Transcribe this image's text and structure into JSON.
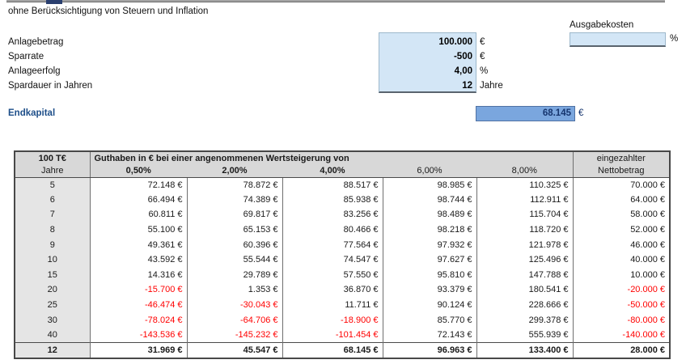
{
  "header": {
    "subtitle": "ohne Berücksichtigung von Steuern und Inflation"
  },
  "inputs": {
    "rows": [
      {
        "label": "Anlagebetrag",
        "value": "100.000",
        "unit": "€"
      },
      {
        "label": "Sparrate",
        "value": "-500",
        "unit": "€"
      },
      {
        "label": "Anlageerfolg",
        "value": "4,00",
        "unit": "%"
      },
      {
        "label": "Spardauer in Jahren",
        "value": "12",
        "unit": "Jahre"
      }
    ],
    "ausgabekosten": {
      "label": "Ausgabekosten",
      "value": "",
      "unit": "%"
    }
  },
  "result": {
    "label": "Endkapital",
    "value": "68.145",
    "unit": "€"
  },
  "colors": {
    "input_field_bg": "#d3e6f6",
    "result_field_bg": "#7aa6de",
    "negative_value": "#ff0000",
    "header_bg": "#d8d8d8",
    "result_text": "#16356e"
  },
  "table": {
    "corner_top": "100 T€",
    "corner_bottom": "Jahre",
    "group_header": "Guthaben in € bei einer angenommenen Wertsteigerung von",
    "last_col_top": "eingezahlter",
    "last_col_bottom": "Nettobetrag",
    "columns": [
      {
        "label": "0,50%",
        "bold": true
      },
      {
        "label": "2,00%",
        "bold": true
      },
      {
        "label": "4,00%",
        "bold": true
      },
      {
        "label": "6,00%",
        "bold": false
      },
      {
        "label": "8,00%",
        "bold": false
      }
    ],
    "rows": [
      {
        "jahre": "5",
        "values": [
          "72.148 €",
          "78.872 €",
          "88.517 €",
          "98.985 €",
          "110.325 €",
          "70.000 €"
        ]
      },
      {
        "jahre": "6",
        "values": [
          "66.494 €",
          "74.389 €",
          "85.938 €",
          "98.744 €",
          "112.911 €",
          "64.000 €"
        ]
      },
      {
        "jahre": "7",
        "values": [
          "60.811 €",
          "69.817 €",
          "83.256 €",
          "98.489 €",
          "115.704 €",
          "58.000 €"
        ]
      },
      {
        "jahre": "8",
        "values": [
          "55.100 €",
          "65.153 €",
          "80.466 €",
          "98.218 €",
          "118.720 €",
          "52.000 €"
        ]
      },
      {
        "jahre": "9",
        "values": [
          "49.361 €",
          "60.396 €",
          "77.564 €",
          "97.932 €",
          "121.978 €",
          "46.000 €"
        ]
      },
      {
        "jahre": "10",
        "values": [
          "43.592 €",
          "55.544 €",
          "74.547 €",
          "97.627 €",
          "125.496 €",
          "40.000 €"
        ]
      },
      {
        "jahre": "15",
        "values": [
          "14.316 €",
          "29.789 €",
          "57.550 €",
          "95.810 €",
          "147.788 €",
          "10.000 €"
        ]
      },
      {
        "jahre": "20",
        "values": [
          "-15.700 €",
          "1.353 €",
          "36.870 €",
          "93.379 €",
          "180.541 €",
          "-20.000 €"
        ]
      },
      {
        "jahre": "25",
        "values": [
          "-46.474 €",
          "-30.043 €",
          "11.711 €",
          "90.124 €",
          "228.666 €",
          "-50.000 €"
        ]
      },
      {
        "jahre": "30",
        "values": [
          "-78.024 €",
          "-64.706 €",
          "-18.900 €",
          "85.770 €",
          "299.378 €",
          "-80.000 €"
        ]
      },
      {
        "jahre": "40",
        "values": [
          "-143.536 €",
          "-145.232 €",
          "-101.454 €",
          "72.143 €",
          "555.939 €",
          "-140.000 €"
        ]
      }
    ],
    "total_row": {
      "jahre": "12",
      "values": [
        "31.969 €",
        "45.547 €",
        "68.145 €",
        "96.963 €",
        "133.400 €",
        "28.000 €"
      ]
    }
  }
}
